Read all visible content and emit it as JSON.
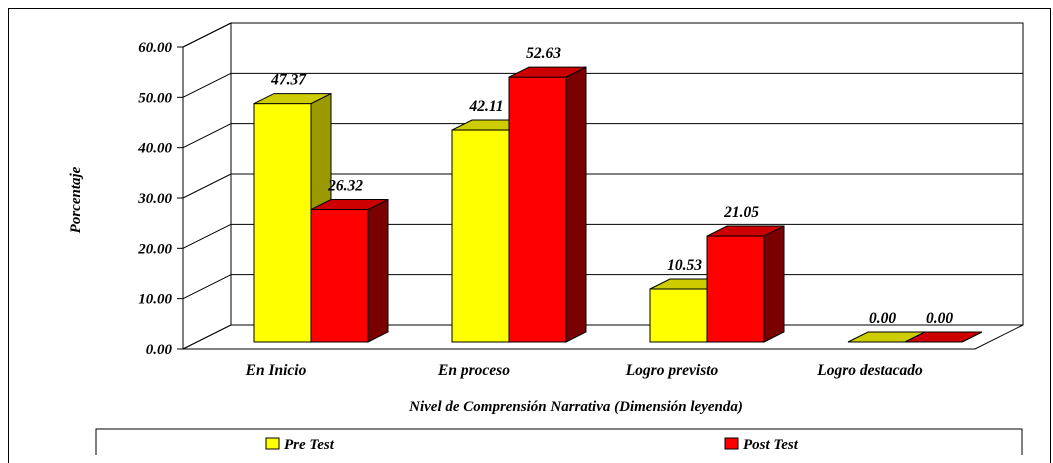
{
  "chart_data": {
    "type": "bar",
    "title": "",
    "xlabel": "Nivel de Comprensión Narrativa (Dimensión leyenda)",
    "ylabel": "Porcentaje",
    "categories": [
      "En Inicio",
      "En proceso",
      "Logro previsto",
      "Logro destacado"
    ],
    "series": [
      {
        "name": "Pre Test",
        "values": [
          47.37,
          42.11,
          10.53,
          0.0
        ],
        "color": "#ffff00",
        "side_color": "#9a9a00",
        "top_color": "#cccc00"
      },
      {
        "name": "Post Test",
        "values": [
          26.32,
          52.63,
          21.05,
          0.0
        ],
        "color": "#ff0000",
        "side_color": "#7a0000",
        "top_color": "#cc0000"
      }
    ],
    "yticks": [
      "0.00",
      "10.00",
      "20.00",
      "30.00",
      "40.00",
      "50.00",
      "60.00"
    ],
    "data_labels": [
      [
        "47.37",
        "42.11",
        "10.53",
        "0.00"
      ],
      [
        "26.32",
        "52.63",
        "21.05",
        "0.00"
      ]
    ],
    "ylim": [
      0,
      60
    ],
    "grid": true,
    "legend_position": "bottom",
    "three_d": true
  }
}
